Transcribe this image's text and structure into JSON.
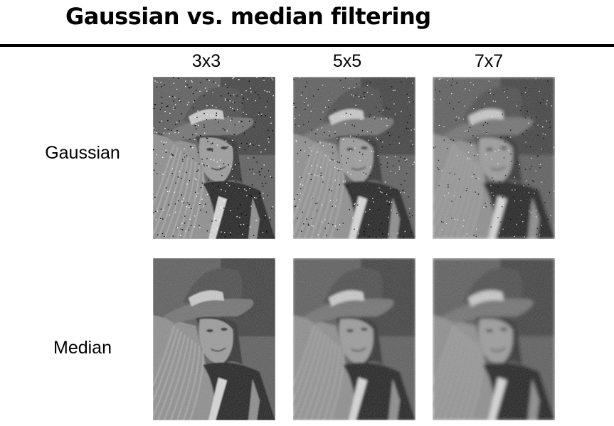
{
  "slide": {
    "title": "Gaussian vs. median filtering"
  },
  "grid": {
    "columns": [
      "3x3",
      "5x5",
      "7x7"
    ],
    "rows": [
      "Gaussian",
      "Median"
    ]
  }
}
